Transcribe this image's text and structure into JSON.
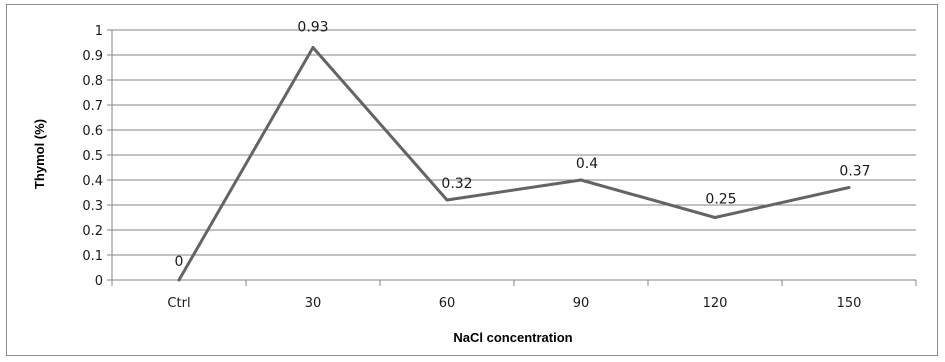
{
  "chart_data": {
    "type": "line",
    "categories": [
      "Ctrl",
      "30",
      "60",
      "90",
      "120",
      "150"
    ],
    "series": [
      {
        "values": [
          0,
          0.93,
          0.32,
          0.4,
          0.25,
          0.37
        ]
      }
    ],
    "data_labels": [
      "0",
      "0.93",
      "0.32",
      "0.4",
      "0.25",
      "0.37"
    ],
    "xlabel": "NaCl concentration",
    "ylabel": "Thymol (%)",
    "ylim": [
      0,
      1
    ],
    "yticks": [
      "0",
      "0.1",
      "0.2",
      "0.3",
      "0.4",
      "0.5",
      "0.6",
      "0.7",
      "0.8",
      "0.9",
      "1"
    ],
    "grid": true,
    "legend": "none",
    "colors": {
      "line": "#646464",
      "grid": "#868686",
      "axis": "#868686"
    }
  }
}
